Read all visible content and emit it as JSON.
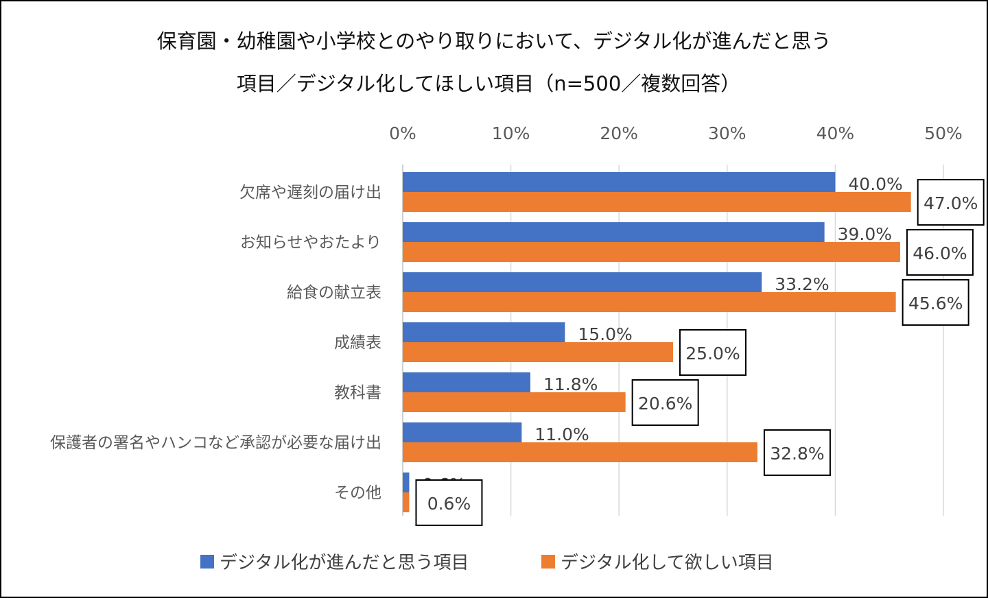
{
  "chart_data": {
    "type": "bar",
    "orientation": "horizontal",
    "title_lines": [
      "保育園・幼稚園や小学校とのやり取りにおいて、デジタル化が進んだと思う",
      "項目／デジタル化してほしい項目（n=500／複数回答）"
    ],
    "categories": [
      "欠席や遅刻の届け出",
      "お知らせやおたより",
      "給食の献立表",
      "成績表",
      "教科書",
      "保護者の署名やハンコなど承認が必要な届け出",
      "その他"
    ],
    "series": [
      {
        "name": "デジタル化が進んだと思う項目",
        "color": "#4472C4",
        "values": [
          40.0,
          39.0,
          33.2,
          15.0,
          11.8,
          11.0,
          0.6
        ],
        "labels": [
          "40.0%",
          "39.0%",
          "33.2%",
          "15.0%",
          "11.8%",
          "11.0%",
          "0.6%"
        ]
      },
      {
        "name": "デジタル化して欲しい項目",
        "color": "#ED7D31",
        "values": [
          47.0,
          46.0,
          45.6,
          25.0,
          20.6,
          32.8,
          0.6
        ],
        "labels": [
          "47.0%",
          "46.0%",
          "45.6%",
          "25.0%",
          "20.6%",
          "32.8%",
          "0.6%"
        ]
      }
    ],
    "xlim": [
      0,
      50
    ],
    "xticks": [
      "0%",
      "10%",
      "20%",
      "30%",
      "40%",
      "50%"
    ],
    "x_axis_position": "top",
    "grid": true,
    "legend": "bottom"
  }
}
